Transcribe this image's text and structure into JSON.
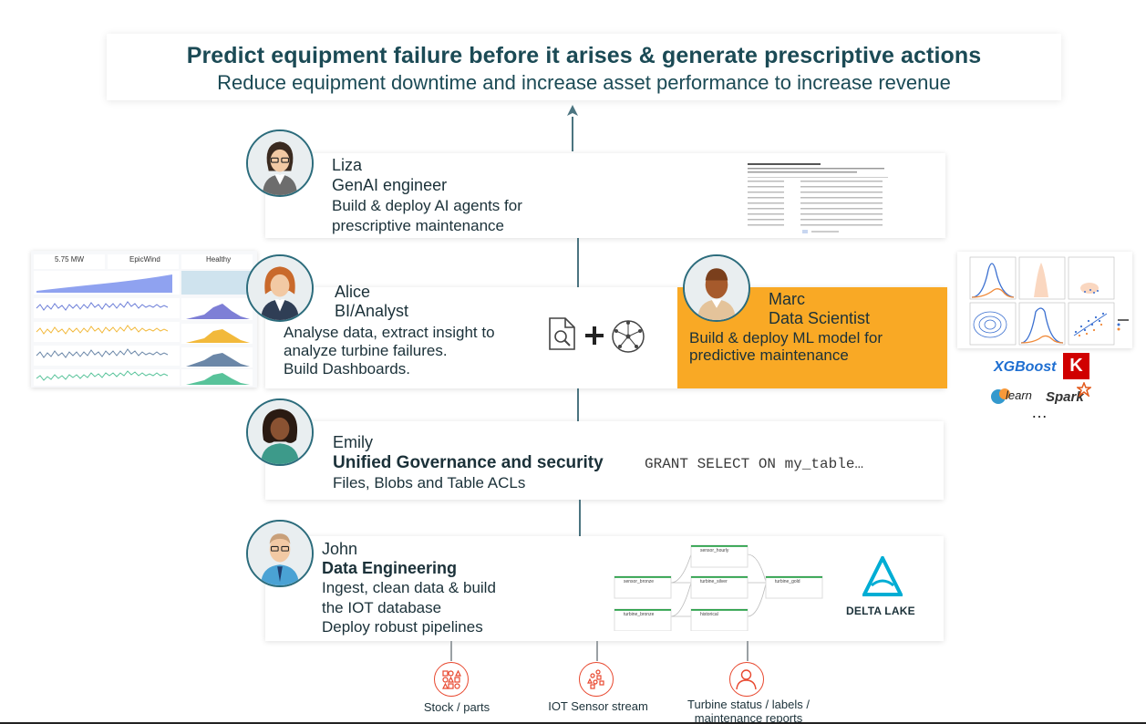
{
  "header": {
    "line1": "Predict equipment failure before it arises  & generate prescriptive actions",
    "line2": "Reduce equipment downtime and increase asset performance to increase revenue"
  },
  "personas": {
    "liza": {
      "name": "Liza",
      "role": "GenAI engineer",
      "desc1": "Build & deploy AI agents for",
      "desc2": "prescriptive maintenance"
    },
    "alice": {
      "name": "Alice",
      "role": "BI/Analyst",
      "desc1": "Analyse data, extract insight to",
      "desc2": "analyze turbine failures.",
      "desc3": "Build Dashboards."
    },
    "marc": {
      "name": "Marc",
      "role": "Data Scientist",
      "desc1": "Build & deploy ML model for",
      "desc2": "predictive maintenance"
    },
    "emily": {
      "name": "Emily",
      "role": "Unified Governance and security",
      "desc1": "Files, Blobs and Table ACLs",
      "code": "GRANT SELECT ON my_table…"
    },
    "john": {
      "name": "John",
      "role": "Data Engineering",
      "desc1": "Ingest, clean data & build",
      "desc2": "the IOT database",
      "desc3": "Deploy robust pipelines"
    }
  },
  "dashboard": {
    "kpi1": "5.75 MW",
    "kpi2": "EpicWind",
    "kpi3": "Healthy"
  },
  "libraries": {
    "xgboost": "XGBoost",
    "keras": "K",
    "sklearn": "learn",
    "spark": "Spark",
    "more": "…"
  },
  "pipeline": {
    "nodes": [
      "sensor_bronze",
      "turbine_bronze",
      "sensor_hourly",
      "turbine_silver",
      "historical",
      "turbine_gold"
    ]
  },
  "delta": {
    "label": "DELTA LAKE"
  },
  "sources": {
    "stock": "Stock / parts",
    "iot": "IOT Sensor stream",
    "turbine1": "Turbine status / labels /",
    "turbine2": "maintenance reports"
  },
  "colors": {
    "accent": "#f9a925",
    "teal": "#1b4a55",
    "source_red": "#e8482f"
  }
}
